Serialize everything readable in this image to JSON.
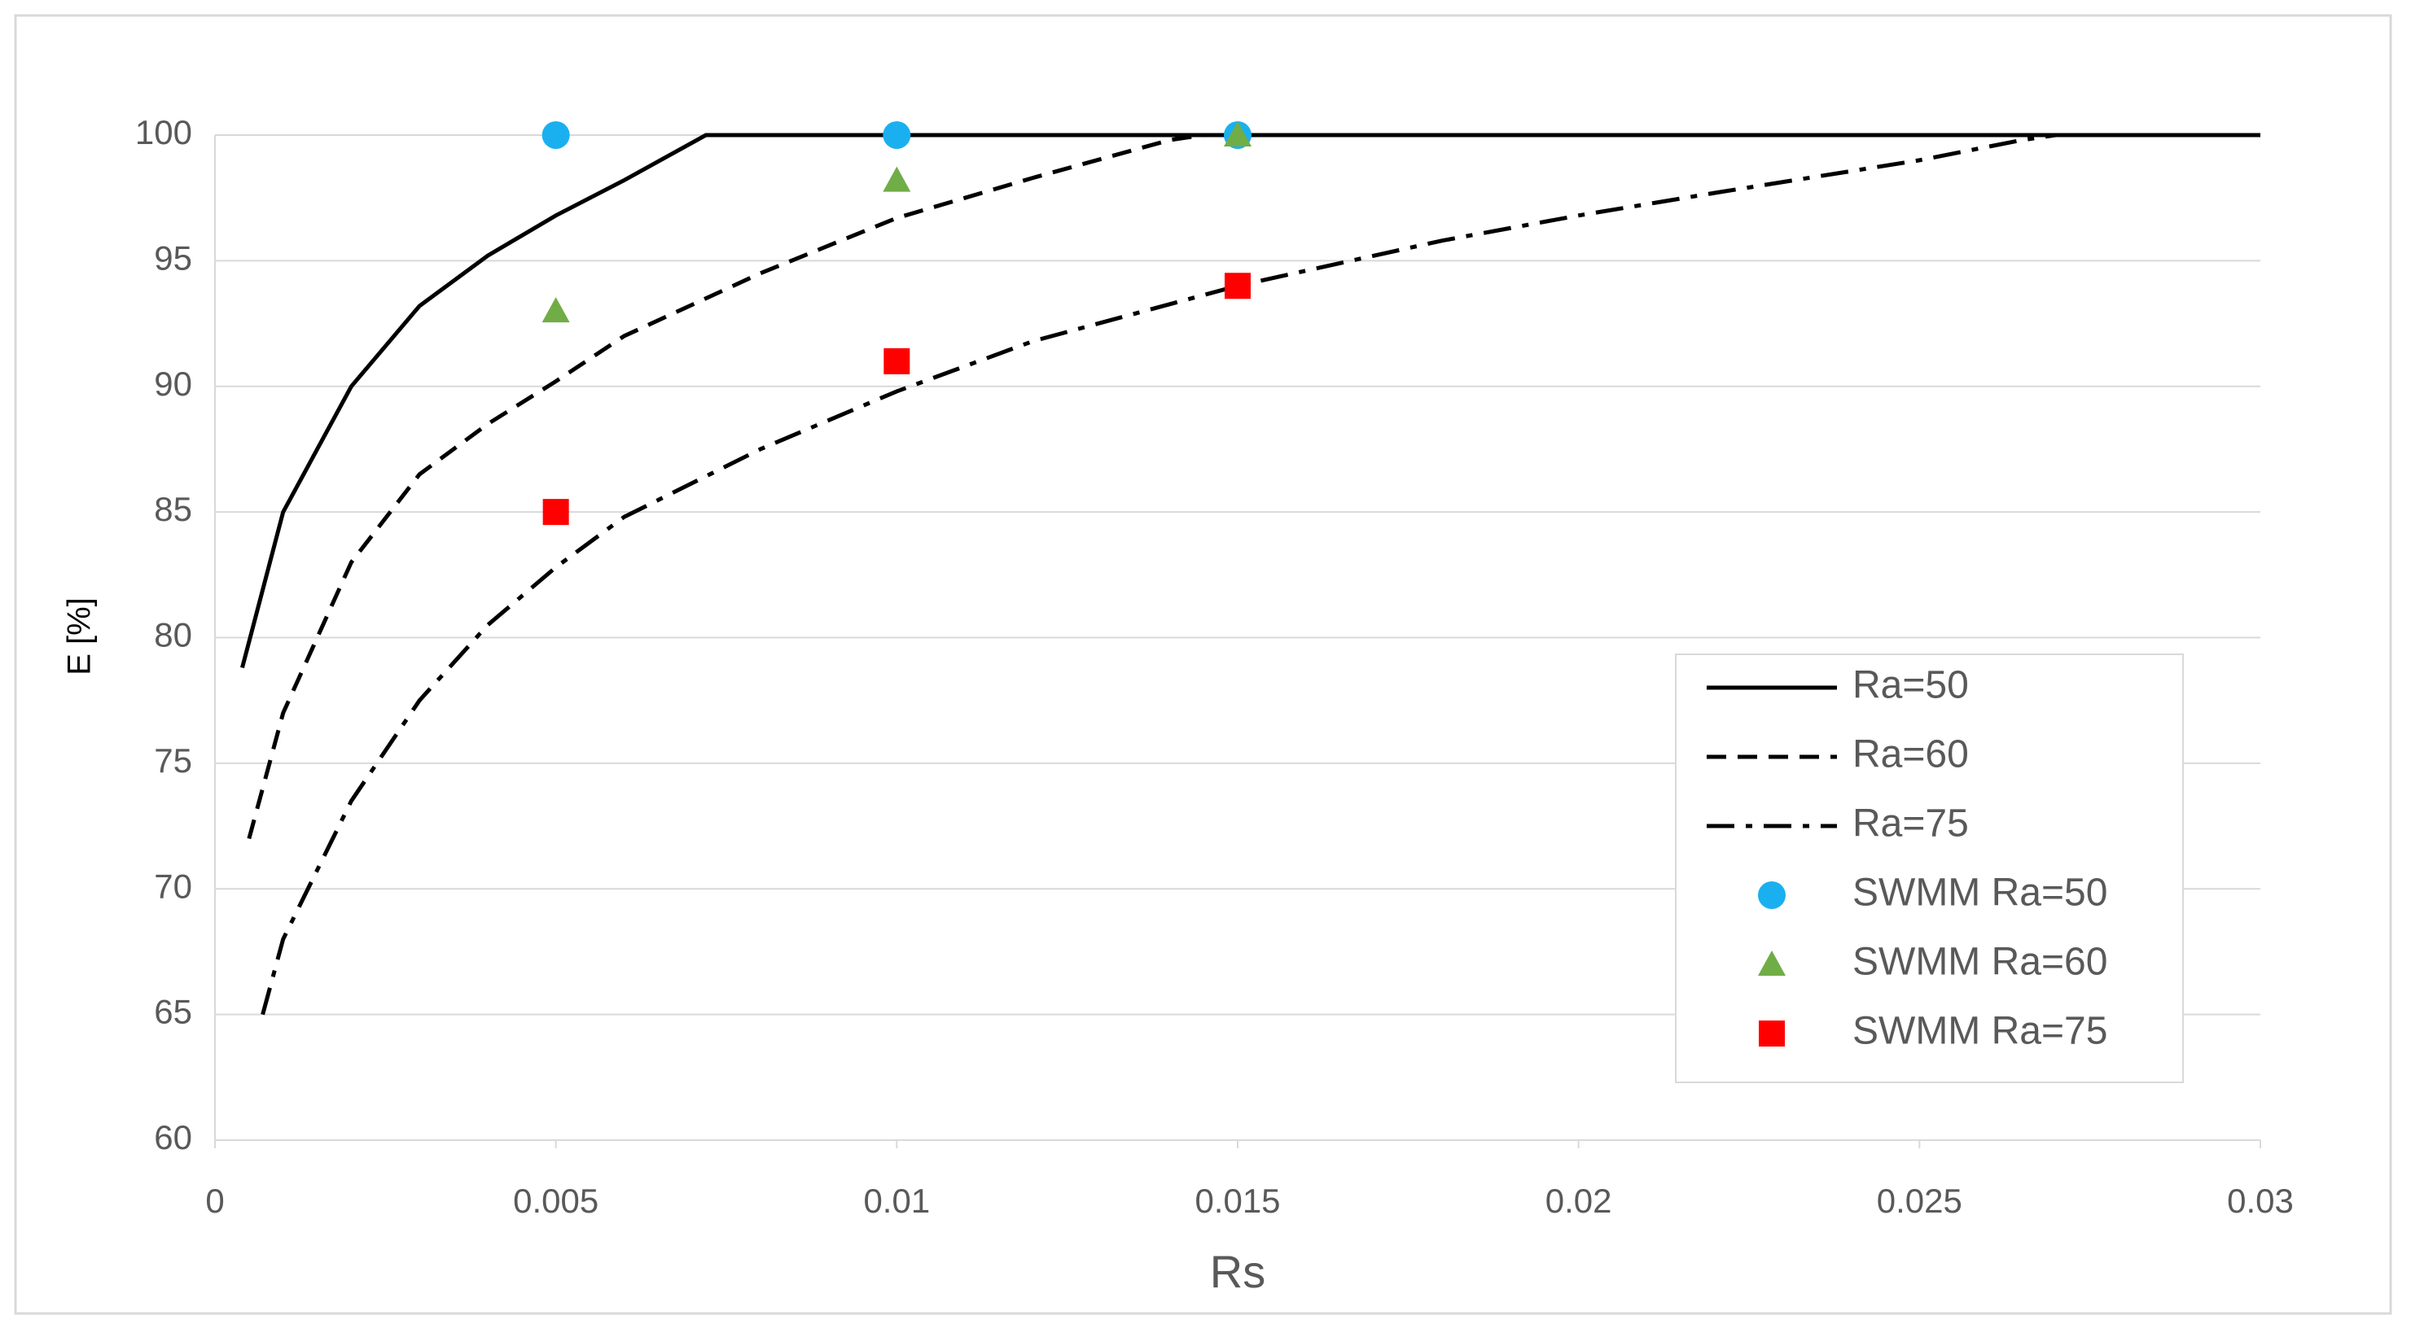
{
  "chart_data": {
    "type": "line",
    "x_label": "Rs",
    "y_label": "E [%]",
    "xlim": [
      0,
      0.03
    ],
    "xticks": [
      0,
      0.005,
      0.01,
      0.015,
      0.02,
      0.025,
      0.03
    ],
    "ylim": [
      60,
      100
    ],
    "yticks": [
      60,
      65,
      70,
      75,
      80,
      85,
      90,
      95,
      100
    ],
    "grid": true,
    "legend": "lower right",
    "series": [
      {
        "name": "Ra=50",
        "color": "#000000",
        "dash": "solid",
        "x": [
          0.0004,
          0.001,
          0.002,
          0.003,
          0.004,
          0.005,
          0.006,
          0.0072,
          0.03
        ],
        "values": [
          78.8,
          85,
          90,
          93.2,
          95.2,
          96.8,
          98.2,
          100,
          100
        ]
      },
      {
        "name": "Ra=60",
        "color": "#000000",
        "dash": "dashed",
        "x": [
          0.0005,
          0.001,
          0.002,
          0.003,
          0.004,
          0.005,
          0.006,
          0.008,
          0.01,
          0.012,
          0.014,
          0.0145,
          0.03
        ],
        "values": [
          72,
          77,
          83,
          86.5,
          88.5,
          90.2,
          92,
          94.5,
          96.7,
          98.3,
          99.8,
          100,
          100
        ]
      },
      {
        "name": "Ra=75",
        "color": "#000000",
        "dash": "dashdot",
        "x": [
          0.0007,
          0.001,
          0.002,
          0.003,
          0.004,
          0.005,
          0.006,
          0.008,
          0.01,
          0.012,
          0.015,
          0.018,
          0.02,
          0.022,
          0.025,
          0.0265,
          0.027,
          0.03
        ],
        "values": [
          65,
          68,
          73.5,
          77.5,
          80.5,
          82.8,
          84.8,
          87.5,
          89.8,
          91.8,
          94,
          95.8,
          96.8,
          97.7,
          99,
          99.8,
          100,
          100
        ]
      },
      {
        "name": "SWMM Ra=50",
        "color": "#1ab0f0",
        "marker": "circle",
        "x": [
          0.005,
          0.01,
          0.015
        ],
        "values": [
          100,
          100,
          100
        ]
      },
      {
        "name": "SWMM Ra=60",
        "color": "#70ad47",
        "marker": "triangle",
        "x": [
          0.005,
          0.01,
          0.015
        ],
        "values": [
          93,
          98.2,
          100
        ]
      },
      {
        "name": "SWMM Ra=75",
        "color": "#ff0000",
        "marker": "square",
        "x": [
          0.005,
          0.01,
          0.015
        ],
        "values": [
          85,
          91,
          94
        ]
      }
    ]
  }
}
